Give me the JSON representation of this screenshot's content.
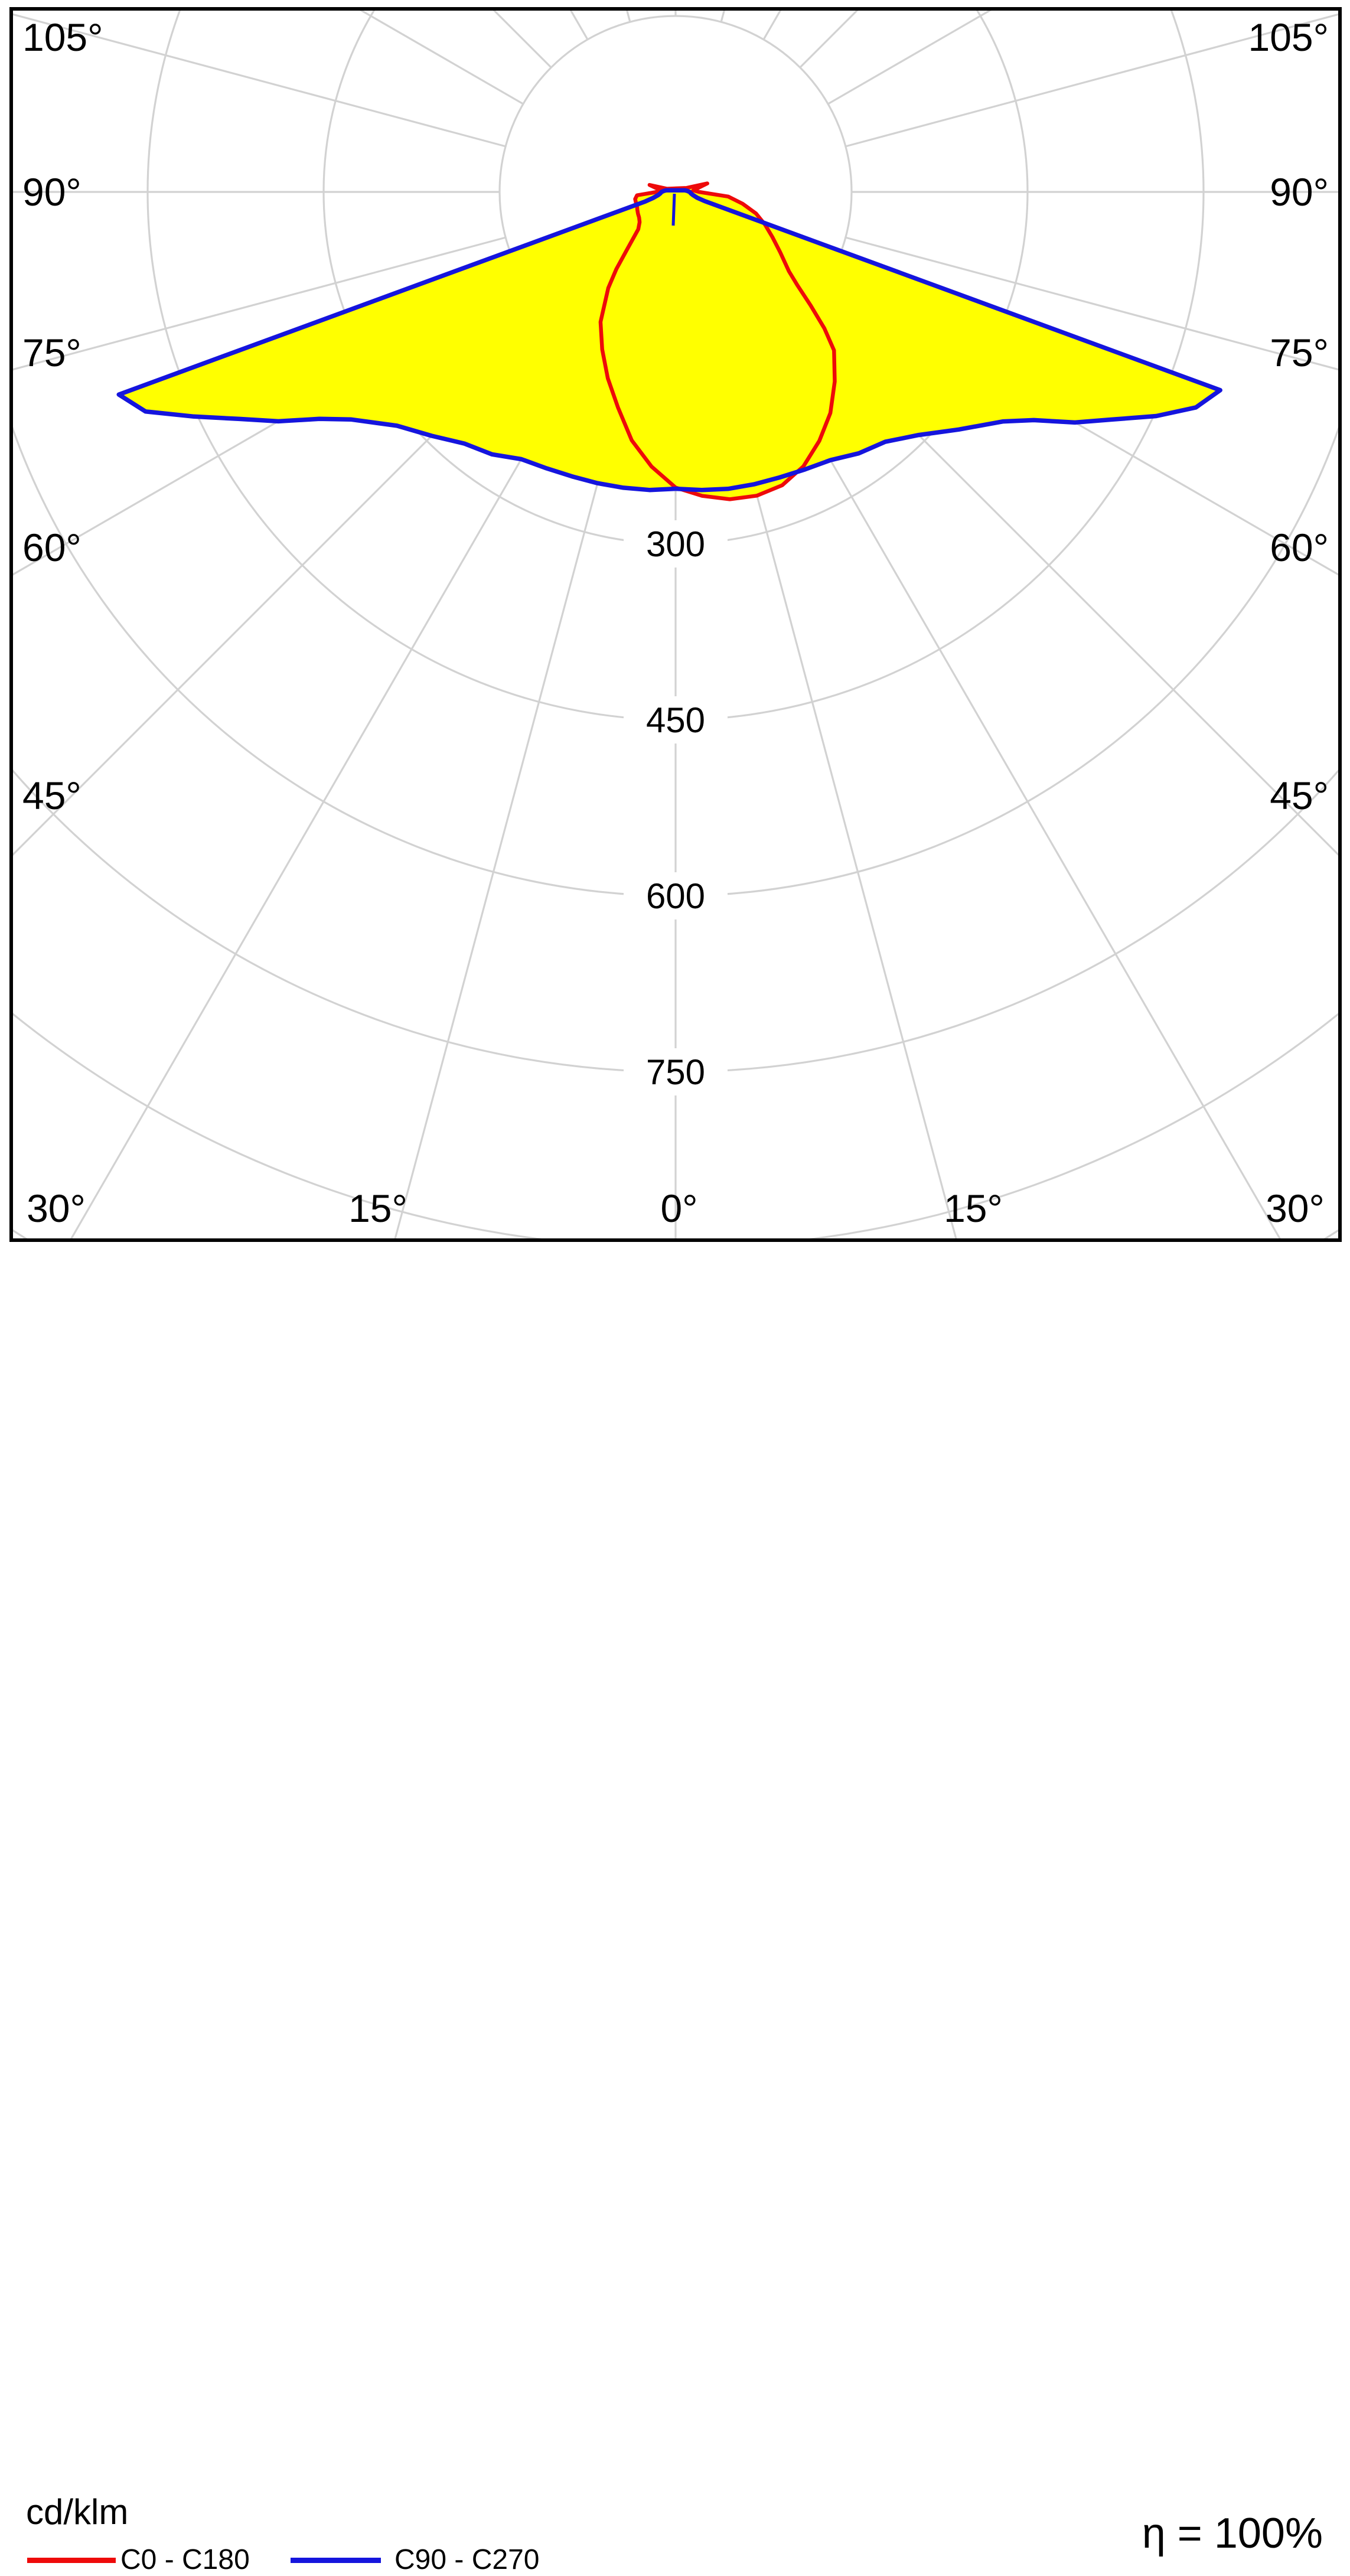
{
  "chart_data": {
    "type": "polar_photometric",
    "title": "cd/klm",
    "unit": "cd/klm",
    "efficiency_label": "η = 100%",
    "radial_ticks": [
      300,
      450,
      600,
      750
    ],
    "radial_step": 150,
    "radial_max_ring": 1050,
    "grid_on": true,
    "angle_step_deg": 15,
    "angle_labels_left": [
      "105°",
      "90°",
      "75°",
      "60°",
      "45°"
    ],
    "angle_labels_right": [
      "105°",
      "90°",
      "75°",
      "60°",
      "45°"
    ],
    "angle_labels_bottom": [
      "30°",
      "15°",
      "0°",
      "15°",
      "30°"
    ],
    "legend": [
      {
        "label": "C0 - C180",
        "color": "#ee0a0a"
      },
      {
        "label": "C90 - C270",
        "color": "#1515dd"
      }
    ],
    "colors": {
      "fill": "#ffff00",
      "c0_c180": "#ee0a0a",
      "c90_c270": "#1515dd",
      "grid": "#d2d2d2",
      "border": "#000000"
    },
    "series": {
      "C0": [
        [
          0,
          252
        ],
        [
          5,
          260
        ],
        [
          10,
          266
        ],
        [
          15,
          268
        ],
        [
          20,
          266
        ],
        [
          25,
          258
        ],
        [
          30,
          245
        ],
        [
          35,
          230
        ],
        [
          40,
          211
        ],
        [
          45,
          191
        ],
        [
          47.5,
          172
        ],
        [
          50,
          150
        ],
        [
          52.5,
          131
        ],
        [
          55,
          118
        ],
        [
          60,
          103
        ],
        [
          65,
          91
        ],
        [
          70,
          81
        ],
        [
          75,
          71
        ],
        [
          80,
          58
        ],
        [
          85,
          45
        ],
        [
          90,
          20
        ],
        [
          95,
          15
        ],
        [
          105,
          28
        ],
        [
          110,
          10
        ]
      ],
      "C180": [
        [
          0,
          252
        ],
        [
          5,
          235
        ],
        [
          10,
          215
        ],
        [
          15,
          190
        ],
        [
          20,
          169
        ],
        [
          25,
          148
        ],
        [
          30,
          128
        ],
        [
          35,
          100
        ],
        [
          37.5,
          83
        ],
        [
          40,
          65
        ],
        [
          45,
          45
        ],
        [
          50,
          40
        ],
        [
          55,
          38
        ],
        [
          60,
          37
        ],
        [
          65,
          36
        ],
        [
          70,
          35
        ],
        [
          75,
          35
        ],
        [
          80,
          35
        ],
        [
          85,
          33
        ],
        [
          90,
          16
        ],
        [
          95,
          12
        ],
        [
          105,
          23
        ],
        [
          110,
          8
        ]
      ],
      "C90": [
        [
          0,
          253
        ],
        [
          5,
          255
        ],
        [
          10,
          257
        ],
        [
          15,
          258
        ],
        [
          20,
          259
        ],
        [
          25,
          261
        ],
        [
          30,
          264
        ],
        [
          35,
          272
        ],
        [
          40,
          278
        ],
        [
          45,
          293
        ],
        [
          50,
          315
        ],
        [
          55,
          341
        ],
        [
          57.5,
          362
        ],
        [
          60,
          393
        ],
        [
          62.5,
          420
        ],
        [
          65,
          452
        ],
        [
          67.5,
          480
        ],
        [
          70,
          494
        ],
        [
          72.5,
          26
        ],
        [
          75,
          19
        ],
        [
          80,
          15
        ],
        [
          85,
          13
        ],
        [
          90,
          12
        ],
        [
          95,
          10
        ],
        [
          100,
          8
        ]
      ],
      "C270": [
        [
          0,
          253
        ],
        [
          5,
          255
        ],
        [
          10,
          256
        ],
        [
          15,
          257
        ],
        [
          20,
          258
        ],
        [
          25,
          260
        ],
        [
          30,
          263
        ],
        [
          35,
          273
        ],
        [
          40,
          280
        ],
        [
          45,
          294
        ],
        [
          50,
          310
        ],
        [
          55,
          338
        ],
        [
          57.5,
          360
        ],
        [
          60,
          391
        ],
        [
          62.5,
          419
        ],
        [
          65,
          453
        ],
        [
          67.5,
          489
        ],
        [
          70,
          505
        ],
        [
          72.5,
          27
        ],
        [
          75,
          20
        ],
        [
          80,
          15
        ],
        [
          85,
          13
        ],
        [
          90,
          12
        ],
        [
          95,
          10
        ],
        [
          100,
          8
        ]
      ]
    }
  },
  "footer": {
    "unit_label": "cd/klm",
    "eta_label": "η = 100%",
    "legend_red_label": "C0 - C180",
    "legend_blue_label": "C90 - C270"
  }
}
